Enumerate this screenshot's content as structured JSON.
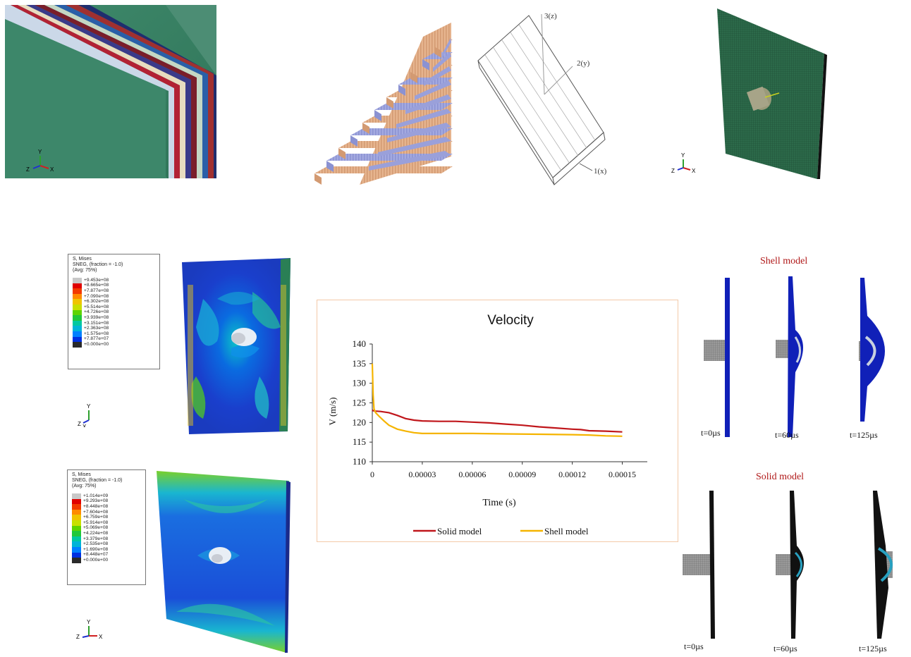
{
  "top_panels": {
    "triad_axes": [
      "Y",
      "X",
      "Z"
    ],
    "coord_axes": [
      "3(z)",
      "2(y)",
      "1(x)"
    ]
  },
  "legend_shell": {
    "title_lines": [
      "S, Mises",
      "SNEG, (fraction = -1.0)",
      "(Avg: 75%)"
    ],
    "values": [
      "+9.453e+08",
      "+8.665e+08",
      "+7.877e+08",
      "+7.090e+08",
      "+6.302e+08",
      "+5.514e+08",
      "+4.726e+08",
      "+3.939e+08",
      "+3.151e+08",
      "+2.363e+08",
      "+1.575e+08",
      "+7.877e+07",
      "+0.000e+00"
    ],
    "colors": [
      "#c8c8c8",
      "#e00000",
      "#f23a00",
      "#ff8a00",
      "#f0c400",
      "#c8e000",
      "#5ed400",
      "#20c83a",
      "#00c8a0",
      "#00b4d8",
      "#0080ff",
      "#0030e0",
      "#2a2a2a"
    ]
  },
  "legend_solid": {
    "title_lines": [
      "S, Mises",
      "SNEG, (fraction = -1.0)",
      "(Avg: 75%)"
    ],
    "values": [
      "+1.014e+09",
      "+9.293e+08",
      "+8.448e+08",
      "+7.604e+08",
      "+6.759e+08",
      "+5.914e+08",
      "+5.069e+08",
      "+4.224e+08",
      "+3.379e+08",
      "+2.535e+08",
      "+1.690e+08",
      "+8.448e+07",
      "+0.000e+00"
    ],
    "colors": [
      "#c8c8c8",
      "#e00000",
      "#f23a00",
      "#ff8a00",
      "#f0c400",
      "#c8e000",
      "#5ed400",
      "#20c83a",
      "#00c8a0",
      "#00b4d8",
      "#0080ff",
      "#0030e0",
      "#2a2a2a"
    ]
  },
  "chart_data": {
    "type": "line",
    "title": "Velocity",
    "xlabel": "Time (s)",
    "ylabel": "V (m/s)",
    "xlim": [
      0,
      0.000165
    ],
    "ylim": [
      110,
      140
    ],
    "xticks": [
      "0",
      "0.00003",
      "0.00006",
      "0.00009",
      "0.00012",
      "0.00015"
    ],
    "xtick_values": [
      0,
      3e-05,
      6e-05,
      9e-05,
      0.00012,
      0.00015
    ],
    "yticks": [
      110,
      115,
      120,
      125,
      130,
      135,
      140
    ],
    "legend_position": "bottom",
    "series": [
      {
        "name": "Solid model",
        "color": "#c0161b",
        "x": [
          0,
          5e-07,
          2e-06,
          5e-06,
          1e-05,
          1.5e-05,
          2e-05,
          2.5e-05,
          3e-05,
          4e-05,
          5e-05,
          6e-05,
          7e-05,
          8e-05,
          9e-05,
          0.0001,
          0.00011,
          0.00012,
          0.000125,
          0.00013,
          0.00014,
          0.00015
        ],
        "y": [
          123.2,
          123.0,
          122.9,
          122.8,
          122.5,
          121.8,
          121.0,
          120.6,
          120.4,
          120.3,
          120.3,
          120.1,
          119.9,
          119.6,
          119.3,
          118.9,
          118.6,
          118.3,
          118.2,
          117.9,
          117.8,
          117.6
        ]
      },
      {
        "name": "Shell model",
        "color": "#f5b400",
        "x": [
          0,
          5e-07,
          1e-06,
          2e-06,
          4e-06,
          7e-06,
          1e-05,
          1.5e-05,
          2e-05,
          2.5e-05,
          3e-05,
          4e-05,
          6e-05,
          8e-05,
          0.0001,
          0.00012,
          0.00013,
          0.00014,
          0.00015
        ],
        "y": [
          135,
          127,
          123.5,
          122.5,
          121.6,
          120.4,
          119.3,
          118.3,
          117.8,
          117.4,
          117.2,
          117.2,
          117.2,
          117.1,
          117.0,
          116.9,
          116.8,
          116.6,
          116.5
        ]
      }
    ]
  },
  "shell_sequence": {
    "title": "Shell model",
    "times": [
      "t=0µs",
      "t=60µs",
      "t=125µs"
    ]
  },
  "solid_sequence": {
    "title": "Solid model",
    "times": [
      "t=0µs",
      "t=60µs",
      "t=125µs"
    ]
  }
}
